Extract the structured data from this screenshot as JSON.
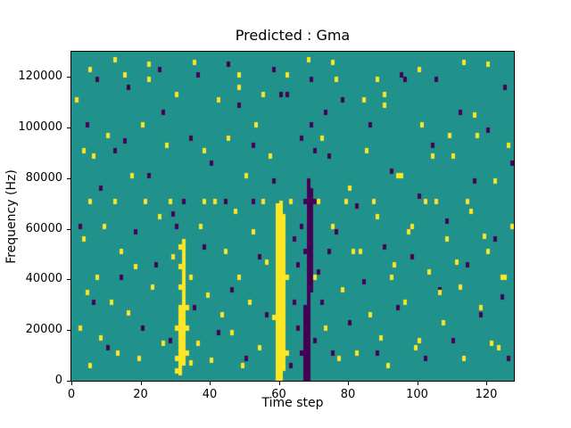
{
  "chart_data": {
    "type": "heatmap",
    "title": "Predicted : Gma",
    "xlabel": "Time step",
    "ylabel": "Frequency (Hz)",
    "xlim": [
      0,
      128
    ],
    "ylim": [
      0,
      130000
    ],
    "x_ticks": [
      0,
      20,
      40,
      60,
      80,
      100,
      120
    ],
    "y_ticks": [
      0,
      20000,
      40000,
      60000,
      80000,
      100000,
      120000
    ],
    "grid": false,
    "legend": "none",
    "colors": {
      "background_mid": "#21918c",
      "high": "#fde725",
      "low": "#440154",
      "figure_bg": "#ffffff",
      "axis": "#000000"
    },
    "cell_size": {
      "time_steps": 1,
      "freq_hz": 2000
    },
    "yellow_columns": [
      {
        "x": 59,
        "y0": 0,
        "y1": 70000
      },
      {
        "x": 60,
        "y0": 0,
        "y1": 71000
      },
      {
        "x": 61,
        "y0": 4000,
        "y1": 66000
      },
      {
        "x": 31,
        "y0": 2000,
        "y1": 30000
      },
      {
        "x": 32,
        "y0": 6000,
        "y1": 56000
      }
    ],
    "dark_columns": [
      {
        "x": 67,
        "y0": 0,
        "y1": 30000
      },
      {
        "x": 68,
        "y0": 0,
        "y1": 80000
      },
      {
        "x": 69,
        "y0": 35000,
        "y1": 76000
      }
    ],
    "yellow_cells": [
      [
        1,
        110000
      ],
      [
        2,
        20000
      ],
      [
        3,
        55000
      ],
      [
        3,
        90000
      ],
      [
        4,
        34000
      ],
      [
        5,
        5000
      ],
      [
        5,
        70000
      ],
      [
        6,
        88000
      ],
      [
        7,
        40000
      ],
      [
        8,
        16000
      ],
      [
        9,
        60000
      ],
      [
        10,
        96000
      ],
      [
        11,
        30000
      ],
      [
        12,
        70000
      ],
      [
        13,
        10000
      ],
      [
        14,
        50000
      ],
      [
        15,
        120000
      ],
      [
        16,
        26000
      ],
      [
        17,
        80000
      ],
      [
        18,
        44000
      ],
      [
        19,
        8000
      ],
      [
        20,
        100000
      ],
      [
        21,
        70000
      ],
      [
        22,
        118000
      ],
      [
        23,
        36000
      ],
      [
        25,
        64000
      ],
      [
        26,
        14000
      ],
      [
        27,
        92000
      ],
      [
        28,
        70000
      ],
      [
        29,
        48000
      ],
      [
        30,
        3000
      ],
      [
        30,
        8000
      ],
      [
        30,
        20000
      ],
      [
        31,
        36000
      ],
      [
        31,
        44000
      ],
      [
        31,
        52000
      ],
      [
        33,
        10000
      ],
      [
        33,
        20000
      ],
      [
        33,
        28000
      ],
      [
        34,
        6000
      ],
      [
        34,
        40000
      ],
      [
        36,
        14000
      ],
      [
        37,
        60000
      ],
      [
        38,
        90000
      ],
      [
        38,
        70000
      ],
      [
        39,
        33000
      ],
      [
        40,
        7000
      ],
      [
        41,
        70000
      ],
      [
        42,
        110000
      ],
      [
        43,
        25000
      ],
      [
        44,
        50000
      ],
      [
        45,
        95000
      ],
      [
        46,
        18000
      ],
      [
        47,
        66000
      ],
      [
        48,
        40000
      ],
      [
        48,
        115000
      ],
      [
        49,
        5000
      ],
      [
        50,
        80000
      ],
      [
        51,
        30000
      ],
      [
        52,
        58000
      ],
      [
        53,
        100000
      ],
      [
        54,
        12000
      ],
      [
        55,
        70000
      ],
      [
        56,
        46000
      ],
      [
        57,
        88000
      ],
      [
        58,
        24000
      ],
      [
        62,
        10000
      ],
      [
        62,
        40000
      ],
      [
        63,
        70000
      ],
      [
        70,
        40000
      ],
      [
        71,
        70000
      ],
      [
        72,
        95000
      ],
      [
        73,
        20000
      ],
      [
        75,
        60000
      ],
      [
        76,
        118000
      ],
      [
        77,
        8000
      ],
      [
        78,
        35000
      ],
      [
        79,
        70000
      ],
      [
        80,
        75000
      ],
      [
        81,
        50000
      ],
      [
        82,
        10000
      ],
      [
        83,
        50000
      ],
      [
        84,
        110000
      ],
      [
        85,
        90000
      ],
      [
        86,
        25000
      ],
      [
        87,
        70000
      ],
      [
        88,
        64000
      ],
      [
        89,
        16000
      ],
      [
        90,
        108000
      ],
      [
        91,
        5000
      ],
      [
        92,
        40000
      ],
      [
        93,
        45000
      ],
      [
        94,
        80000
      ],
      [
        95,
        80000
      ],
      [
        96,
        30000
      ],
      [
        97,
        58000
      ],
      [
        98,
        60000
      ],
      [
        99,
        12000
      ],
      [
        100,
        15000
      ],
      [
        101,
        100000
      ],
      [
        102,
        70000
      ],
      [
        103,
        42000
      ],
      [
        104,
        88000
      ],
      [
        105,
        70000
      ],
      [
        106,
        34000
      ],
      [
        107,
        22000
      ],
      [
        108,
        55000
      ],
      [
        109,
        96000
      ],
      [
        110,
        88000
      ],
      [
        111,
        46000
      ],
      [
        112,
        36000
      ],
      [
        113,
        8000
      ],
      [
        114,
        70000
      ],
      [
        115,
        66000
      ],
      [
        116,
        104000
      ],
      [
        117,
        96000
      ],
      [
        118,
        28000
      ],
      [
        119,
        56000
      ],
      [
        120,
        50000
      ],
      [
        121,
        14000
      ],
      [
        122,
        78000
      ],
      [
        123,
        12000
      ],
      [
        124,
        40000
      ],
      [
        125,
        40000
      ],
      [
        126,
        92000
      ],
      [
        127,
        60000
      ],
      [
        5,
        122000
      ],
      [
        22,
        124000
      ],
      [
        35,
        125000
      ],
      [
        48,
        120000
      ],
      [
        62,
        120000
      ],
      [
        75,
        125000
      ],
      [
        88,
        118000
      ],
      [
        100,
        122000
      ],
      [
        113,
        125000
      ],
      [
        30,
        112000
      ],
      [
        55,
        112000
      ],
      [
        90,
        112000
      ],
      [
        12,
        126000
      ],
      [
        68,
        126000
      ],
      [
        120,
        124000
      ]
    ],
    "dark_cells": [
      [
        2,
        60000
      ],
      [
        4,
        100000
      ],
      [
        6,
        30000
      ],
      [
        8,
        75000
      ],
      [
        10,
        12000
      ],
      [
        12,
        90000
      ],
      [
        14,
        40000
      ],
      [
        16,
        115000
      ],
      [
        18,
        58000
      ],
      [
        20,
        20000
      ],
      [
        22,
        80000
      ],
      [
        24,
        45000
      ],
      [
        26,
        105000
      ],
      [
        28,
        15000
      ],
      [
        29,
        65000
      ],
      [
        30,
        60000
      ],
      [
        32,
        70000
      ],
      [
        34,
        95000
      ],
      [
        35,
        28000
      ],
      [
        36,
        120000
      ],
      [
        38,
        52000
      ],
      [
        40,
        85000
      ],
      [
        42,
        18000
      ],
      [
        44,
        70000
      ],
      [
        46,
        35000
      ],
      [
        48,
        108000
      ],
      [
        50,
        8000
      ],
      [
        52,
        92000
      ],
      [
        54,
        48000
      ],
      [
        56,
        25000
      ],
      [
        58,
        78000
      ],
      [
        62,
        112000
      ],
      [
        63,
        5000
      ],
      [
        64,
        55000
      ],
      [
        64,
        30000
      ],
      [
        65,
        20000
      ],
      [
        65,
        45000
      ],
      [
        66,
        10000
      ],
      [
        66,
        60000
      ],
      [
        66,
        95000
      ],
      [
        70,
        70000
      ],
      [
        70,
        15000
      ],
      [
        71,
        42000
      ],
      [
        72,
        30000
      ],
      [
        74,
        88000
      ],
      [
        74,
        50000
      ],
      [
        75,
        10000
      ],
      [
        76,
        58000
      ],
      [
        78,
        110000
      ],
      [
        80,
        22000
      ],
      [
        82,
        68000
      ],
      [
        84,
        38000
      ],
      [
        86,
        100000
      ],
      [
        88,
        10000
      ],
      [
        90,
        52000
      ],
      [
        92,
        82000
      ],
      [
        94,
        28000
      ],
      [
        96,
        118000
      ],
      [
        98,
        48000
      ],
      [
        100,
        72000
      ],
      [
        102,
        8000
      ],
      [
        104,
        92000
      ],
      [
        106,
        35000
      ],
      [
        108,
        62000
      ],
      [
        110,
        15000
      ],
      [
        112,
        105000
      ],
      [
        114,
        45000
      ],
      [
        116,
        78000
      ],
      [
        118,
        25000
      ],
      [
        120,
        98000
      ],
      [
        122,
        55000
      ],
      [
        124,
        32000
      ],
      [
        125,
        115000
      ],
      [
        126,
        8000
      ],
      [
        127,
        85000
      ],
      [
        45,
        124000
      ],
      [
        58,
        122000
      ],
      [
        15,
        94000
      ],
      [
        25,
        122000
      ],
      [
        95,
        120000
      ],
      [
        105,
        118000
      ],
      [
        7,
        118000
      ],
      [
        52,
        70000
      ],
      [
        60,
        112000
      ],
      [
        69,
        100000
      ],
      [
        69,
        118000
      ],
      [
        70,
        90000
      ],
      [
        73,
        105000
      ],
      [
        67,
        50000
      ],
      [
        67,
        70000
      ]
    ]
  }
}
